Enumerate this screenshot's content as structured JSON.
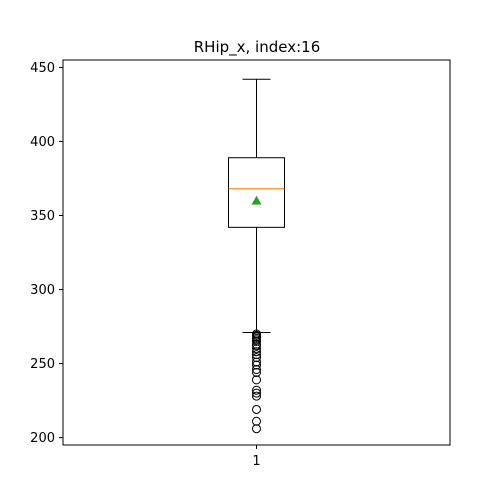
{
  "chart_data": {
    "type": "box",
    "title": "RHip_x, index:16",
    "xlabel": "",
    "ylabel": "",
    "categories": [
      "1"
    ],
    "ylim": [
      195,
      455
    ],
    "yticks": [
      200,
      250,
      300,
      350,
      400,
      450
    ],
    "grid": false,
    "legend": "none",
    "boxes": [
      {
        "category": "1",
        "whisker_low": 271,
        "q1": 342,
        "median": 368,
        "q3": 389,
        "whisker_high": 442,
        "mean": 360,
        "outliers": [
          270,
          269,
          268,
          267,
          266,
          265,
          263,
          262,
          260,
          258,
          256,
          254,
          251,
          249,
          246,
          244,
          239,
          232,
          230,
          228,
          219,
          211,
          206
        ]
      }
    ],
    "colors": {
      "box": "#000000",
      "median": "#ff7f0e",
      "mean": "#2ca02c",
      "outlier": "#000000"
    }
  }
}
